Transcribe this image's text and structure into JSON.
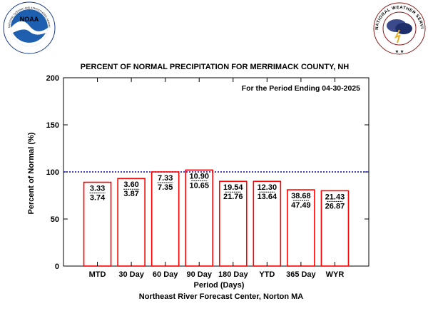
{
  "logos": {
    "noaa_text": "NOAA",
    "noaa_ring": "NATIONAL OCEANIC AND ATMOSPHERIC ADMINISTRATION · U.S. DEPARTMENT OF COMMERCE",
    "nws_ring": "NATIONAL WEATHER SERVICE"
  },
  "chart_data": {
    "type": "bar",
    "title": "PERCENT OF NORMAL PRECIPITATION FOR MERRIMACK COUNTY, NH",
    "subtitle": "For the Period Ending 04-30-2025",
    "xlabel": "Period (Days)",
    "footer": "Northeast River Forecast Center, Norton MA",
    "ylabel": "Percent of Normal (%)",
    "ylim": [
      0,
      200
    ],
    "yticks": [
      0,
      50,
      100,
      150,
      200
    ],
    "reference_line": 100,
    "categories": [
      "MTD",
      "30 Day",
      "60 Day",
      "90 Day",
      "180 Day",
      "YTD",
      "365 Day",
      "WYR"
    ],
    "values": [
      89,
      93,
      100,
      102,
      90,
      90,
      81,
      80
    ],
    "observed": [
      "3.33",
      "3.60",
      "7.33",
      "10.90",
      "19.54",
      "12.30",
      "38.68",
      "21.43"
    ],
    "normal": [
      "3.74",
      "3.87",
      "7.35",
      "10.65",
      "21.76",
      "13.64",
      "47.49",
      "26.87"
    ],
    "bar_color": "#ff0000",
    "line_color": "#0000cc"
  }
}
